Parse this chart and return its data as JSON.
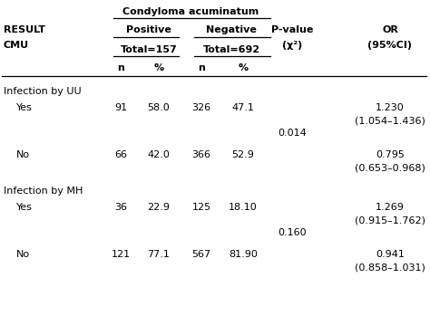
{
  "title": "Condyloma acuminatum",
  "col_headers_pos": "Positive",
  "col_headers_neg": "Negative",
  "col_headers_pval": "P-value",
  "col_headers_chi": "(χ²)",
  "col_headers_or": "OR",
  "col_headers_ci": "(95%CI)",
  "col_headers_result": "RESULT",
  "col_headers_cmu": "CMU",
  "subheader_pos": "Total=157",
  "subheader_neg": "Total=692",
  "col_n1": "n",
  "col_pct1": "%",
  "col_n2": "n",
  "col_pct2": "%",
  "sections": [
    {
      "section_label": "Infection by UU",
      "rows": [
        {
          "label": "Yes",
          "pos_n": "91",
          "pos_pct": "58.0",
          "neg_n": "326",
          "neg_pct": "47.1",
          "pvalue": "",
          "or_top": "1.230",
          "or_bot": "(1.054–1.436)"
        },
        {
          "label": "No",
          "pos_n": "66",
          "pos_pct": "42.0",
          "neg_n": "366",
          "neg_pct": "52.9",
          "pvalue": "0.014",
          "or_top": "0.795",
          "or_bot": "(0.653–0.968)"
        }
      ]
    },
    {
      "section_label": "Infection by MH",
      "rows": [
        {
          "label": "Yes",
          "pos_n": "36",
          "pos_pct": "22.9",
          "neg_n": "125",
          "neg_pct": "18.10",
          "pvalue": "",
          "or_top": "1.269",
          "or_bot": "(0.915–1.762)"
        },
        {
          "label": "No",
          "pos_n": "121",
          "pos_pct": "77.1",
          "neg_n": "567",
          "neg_pct": "81.90",
          "pvalue": "0.160",
          "or_top": "0.941",
          "or_bot": "(0.858–1.031)"
        }
      ]
    }
  ],
  "bg_color": "#ffffff",
  "text_color": "#000000",
  "fs": 8.0,
  "fs_bold": 8.0,
  "figw": 4.74,
  "figh": 3.49,
  "dpi": 100
}
